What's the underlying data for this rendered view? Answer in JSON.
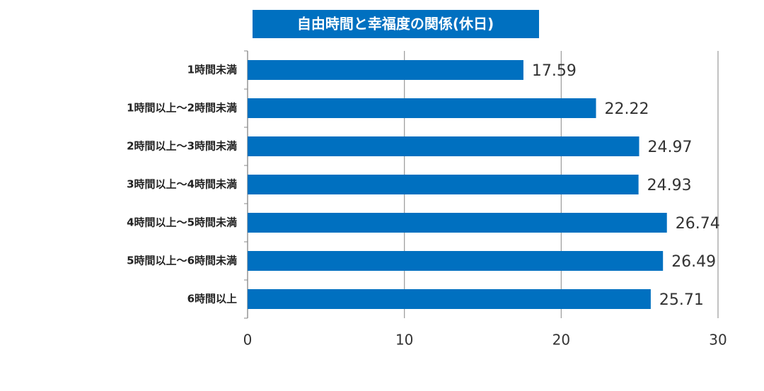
{
  "chart_data": {
    "type": "bar",
    "orientation": "horizontal",
    "title": "自由時間と幸福度の関係(休日)",
    "categories": [
      "1時間未満",
      "1時間以上〜2時間未満",
      "2時間以上〜3時間未満",
      "3時間以上〜4時間未満",
      "4時間以上〜5時間未満",
      "5時間以上〜6時間未満",
      "6時間以上"
    ],
    "values": [
      17.59,
      22.22,
      24.97,
      24.93,
      26.74,
      26.49,
      25.71
    ],
    "value_labels": [
      "17.59",
      "22.22",
      "24.97",
      "24.93",
      "26.74",
      "26.49",
      "25.71"
    ],
    "color": "#0070c0",
    "xlim": [
      0,
      30
    ],
    "xticks": [
      0,
      10,
      20,
      30
    ],
    "grid": true
  }
}
